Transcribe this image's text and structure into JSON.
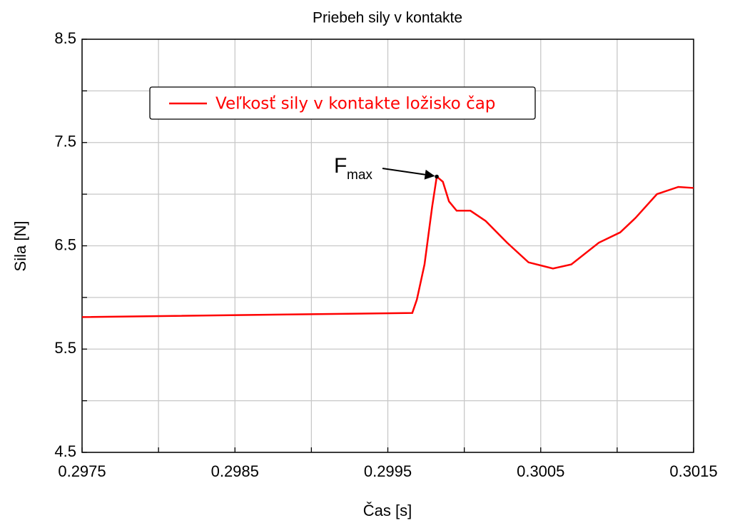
{
  "chart_data": {
    "type": "line",
    "title": "Priebeh sily v kontakte",
    "xlabel": "Čas [s]",
    "ylabel": "Sila [N]",
    "xlim": [
      0.2975,
      0.3015
    ],
    "xticks": [
      0.2975,
      0.2985,
      0.2995,
      0.3005,
      0.3015
    ],
    "xticks_minor": [
      0.298,
      0.299,
      0.3,
      0.301
    ],
    "ylim": [
      4.5,
      8.5
    ],
    "yticks": [
      4.5,
      5.5,
      6.5,
      7.5,
      8.5
    ],
    "yticks_minor": [
      5,
      6,
      7,
      8
    ],
    "grid": true,
    "legend": "upper left",
    "series": [
      {
        "name": "Veľkosť sily v kontakte ložisko čap",
        "color": "#ff0000",
        "x": [
          0.2975,
          0.29966,
          0.29969,
          0.29974,
          0.29979,
          0.29982,
          0.29986,
          0.2999,
          0.29995,
          0.30004,
          0.30014,
          0.30028,
          0.30042,
          0.30058,
          0.3007,
          0.30088,
          0.30102,
          0.30112,
          0.30126,
          0.3014,
          0.3015
        ],
        "values": [
          5.81,
          5.85,
          5.98,
          6.32,
          6.88,
          7.17,
          7.12,
          6.93,
          6.84,
          6.84,
          6.74,
          6.53,
          6.34,
          6.28,
          6.32,
          6.53,
          6.63,
          6.77,
          7.0,
          7.07,
          7.06
        ]
      }
    ],
    "annotation": {
      "text": "F",
      "subscript": "max",
      "x": 0.29982,
      "y": 7.17
    }
  }
}
